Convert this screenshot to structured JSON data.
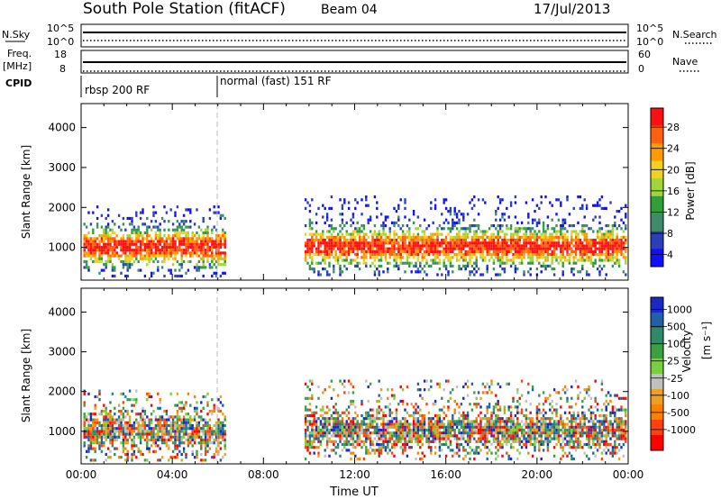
{
  "header": {
    "station_title": "South Pole Station (fitACF)",
    "beam": "Beam 04",
    "date": "17/Jul/2013"
  },
  "noise_panel": {
    "left_label": "N.Sky",
    "left_ticks": [
      "10^5",
      "10^0"
    ],
    "right_label": "N.Search",
    "right_ticks": [
      "10^5",
      "10^0"
    ]
  },
  "freq_panel": {
    "left_label_line1": "Freq.",
    "left_label_line2": "[MHz]",
    "left_ticks": [
      "18",
      "8"
    ],
    "right_label": "Nave",
    "right_ticks": [
      "60",
      "0"
    ]
  },
  "cpid": {
    "label": "CPID",
    "segments": [
      {
        "text": "rbsp 200 RF",
        "start_hour": 0
      },
      {
        "text": "normal (fast) 151 RF",
        "start_hour": 6
      }
    ]
  },
  "chart_data": [
    {
      "type": "heatmap",
      "title": "",
      "ylabel": "Slant Range [km]",
      "xlabel": "",
      "x_range_hours": [
        0,
        24
      ],
      "ylim": [
        180,
        4600
      ],
      "y_ticks": [
        "1000",
        "2000",
        "3000",
        "4000"
      ],
      "colorbar": {
        "label": "Power [dB]",
        "ticks": [
          "28",
          "24",
          "20",
          "16",
          "12",
          "8",
          "4"
        ],
        "range": [
          0,
          30
        ]
      },
      "echo_regions": [
        {
          "start_hour": 0.1,
          "end_hour": 6.3,
          "range_km": [
            300,
            2050
          ]
        },
        {
          "start_hour": 9.8,
          "end_hour": 23.9,
          "range_km": [
            300,
            2300
          ]
        }
      ]
    },
    {
      "type": "heatmap",
      "title": "",
      "ylabel": "Slant Range [km]",
      "xlabel": "Time UT",
      "x_range_hours": [
        0,
        24
      ],
      "x_ticks": [
        "00:00",
        "04:00",
        "08:00",
        "12:00",
        "16:00",
        "20:00",
        "00:00"
      ],
      "ylim": [
        180,
        4600
      ],
      "y_ticks": [
        "1000",
        "2000",
        "3000",
        "4000"
      ],
      "colorbar": {
        "label": "Velocity",
        "label_unit": "[m s⁻¹]",
        "ticks": [
          "1000",
          "500",
          "100",
          "25",
          "-25",
          "-100",
          "-500",
          "-1000"
        ]
      },
      "echo_regions": [
        {
          "start_hour": 0.1,
          "end_hour": 6.3,
          "range_km": [
            300,
            2050
          ]
        },
        {
          "start_hour": 9.8,
          "end_hour": 23.9,
          "range_km": [
            300,
            2300
          ]
        }
      ]
    }
  ],
  "colors": {
    "power_scale": [
      "#1010ff",
      "#2a3fb8",
      "#3e8a6a",
      "#2f9f3a",
      "#9fd63a",
      "#f0d020",
      "#ff9a00",
      "#ff6010",
      "#ff1010"
    ],
    "velocity_scale": [
      "#1a28c8",
      "#2060a8",
      "#2f8a6a",
      "#3aa040",
      "#78d040",
      "#c0c0c0",
      "#f0a020",
      "#ff8000",
      "#ff4010",
      "#ff0000"
    ]
  }
}
